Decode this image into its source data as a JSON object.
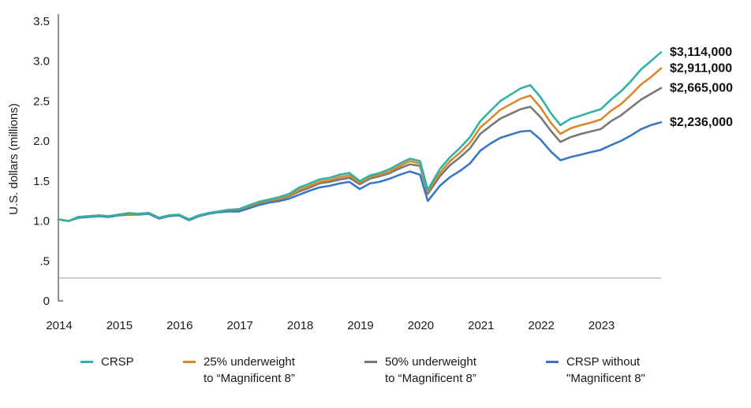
{
  "chart_data": {
    "type": "line",
    "ylabel": "U.S. dollars (millions)",
    "xlabel": "",
    "ylim": [
      0,
      3.5
    ],
    "xlim": [
      2014.0,
      2024.0
    ],
    "yticks": [
      {
        "value": 0,
        "label": "0"
      },
      {
        "value": 0.5,
        "label": ".5"
      },
      {
        "value": 1.0,
        "label": "1.0"
      },
      {
        "value": 1.5,
        "label": "1.5"
      },
      {
        "value": 2.0,
        "label": "2.0"
      },
      {
        "value": 2.5,
        "label": "2.5"
      },
      {
        "value": 3.0,
        "label": "3.0"
      },
      {
        "value": 3.5,
        "label": "3.5"
      }
    ],
    "xticks": [
      "2014",
      "2015",
      "2016",
      "2017",
      "2018",
      "2019",
      "2020",
      "2021",
      "2022",
      "2023"
    ],
    "grid": false,
    "legend_position": "bottom",
    "series": [
      {
        "name": "CRSP",
        "color": "#2fb3a6",
        "end_label": "$3,114,000",
        "points": [
          [
            2014.0,
            1.02
          ],
          [
            2014.17,
            1.0
          ],
          [
            2014.33,
            1.05
          ],
          [
            2014.5,
            1.06
          ],
          [
            2014.67,
            1.07
          ],
          [
            2014.83,
            1.06
          ],
          [
            2015.0,
            1.08
          ],
          [
            2015.17,
            1.1
          ],
          [
            2015.33,
            1.09
          ],
          [
            2015.5,
            1.1
          ],
          [
            2015.67,
            1.04
          ],
          [
            2015.83,
            1.07
          ],
          [
            2016.0,
            1.08
          ],
          [
            2016.17,
            1.02
          ],
          [
            2016.33,
            1.07
          ],
          [
            2016.5,
            1.1
          ],
          [
            2016.67,
            1.12
          ],
          [
            2016.83,
            1.14
          ],
          [
            2017.0,
            1.15
          ],
          [
            2017.17,
            1.2
          ],
          [
            2017.33,
            1.24
          ],
          [
            2017.5,
            1.27
          ],
          [
            2017.67,
            1.3
          ],
          [
            2017.83,
            1.34
          ],
          [
            2018.0,
            1.42
          ],
          [
            2018.17,
            1.47
          ],
          [
            2018.33,
            1.52
          ],
          [
            2018.5,
            1.54
          ],
          [
            2018.67,
            1.58
          ],
          [
            2018.83,
            1.6
          ],
          [
            2019.0,
            1.5
          ],
          [
            2019.17,
            1.57
          ],
          [
            2019.33,
            1.6
          ],
          [
            2019.5,
            1.65
          ],
          [
            2019.67,
            1.72
          ],
          [
            2019.83,
            1.78
          ],
          [
            2020.0,
            1.75
          ],
          [
            2020.13,
            1.39
          ],
          [
            2020.33,
            1.65
          ],
          [
            2020.5,
            1.8
          ],
          [
            2020.67,
            1.92
          ],
          [
            2020.83,
            2.05
          ],
          [
            2021.0,
            2.25
          ],
          [
            2021.17,
            2.38
          ],
          [
            2021.33,
            2.5
          ],
          [
            2021.5,
            2.58
          ],
          [
            2021.67,
            2.66
          ],
          [
            2021.83,
            2.7
          ],
          [
            2022.0,
            2.55
          ],
          [
            2022.17,
            2.35
          ],
          [
            2022.33,
            2.2
          ],
          [
            2022.5,
            2.28
          ],
          [
            2022.67,
            2.32
          ],
          [
            2022.83,
            2.36
          ],
          [
            2023.0,
            2.4
          ],
          [
            2023.17,
            2.52
          ],
          [
            2023.33,
            2.62
          ],
          [
            2023.5,
            2.75
          ],
          [
            2023.67,
            2.9
          ],
          [
            2023.83,
            3.0
          ],
          [
            2024.0,
            3.114
          ]
        ]
      },
      {
        "name": "25% underweight\nto “Magnificent  8”",
        "color": "#d9892c",
        "end_label": "$2,911,000",
        "points": [
          [
            2014.0,
            1.02
          ],
          [
            2014.17,
            1.0
          ],
          [
            2014.33,
            1.05
          ],
          [
            2014.5,
            1.06
          ],
          [
            2014.67,
            1.07
          ],
          [
            2014.83,
            1.06
          ],
          [
            2015.0,
            1.08
          ],
          [
            2015.17,
            1.09
          ],
          [
            2015.33,
            1.09
          ],
          [
            2015.5,
            1.1
          ],
          [
            2015.67,
            1.04
          ],
          [
            2015.83,
            1.07
          ],
          [
            2016.0,
            1.08
          ],
          [
            2016.17,
            1.02
          ],
          [
            2016.33,
            1.07
          ],
          [
            2016.5,
            1.1
          ],
          [
            2016.67,
            1.12
          ],
          [
            2016.83,
            1.14
          ],
          [
            2017.0,
            1.15
          ],
          [
            2017.17,
            1.19
          ],
          [
            2017.33,
            1.23
          ],
          [
            2017.5,
            1.26
          ],
          [
            2017.67,
            1.28
          ],
          [
            2017.83,
            1.32
          ],
          [
            2018.0,
            1.39
          ],
          [
            2018.17,
            1.44
          ],
          [
            2018.33,
            1.49
          ],
          [
            2018.5,
            1.51
          ],
          [
            2018.67,
            1.55
          ],
          [
            2018.83,
            1.57
          ],
          [
            2019.0,
            1.48
          ],
          [
            2019.17,
            1.55
          ],
          [
            2019.33,
            1.58
          ],
          [
            2019.5,
            1.62
          ],
          [
            2019.67,
            1.69
          ],
          [
            2019.83,
            1.75
          ],
          [
            2020.0,
            1.72
          ],
          [
            2020.13,
            1.37
          ],
          [
            2020.33,
            1.6
          ],
          [
            2020.5,
            1.75
          ],
          [
            2020.67,
            1.86
          ],
          [
            2020.83,
            1.98
          ],
          [
            2021.0,
            2.17
          ],
          [
            2021.17,
            2.28
          ],
          [
            2021.33,
            2.39
          ],
          [
            2021.5,
            2.46
          ],
          [
            2021.67,
            2.53
          ],
          [
            2021.83,
            2.57
          ],
          [
            2022.0,
            2.42
          ],
          [
            2022.17,
            2.23
          ],
          [
            2022.33,
            2.09
          ],
          [
            2022.5,
            2.16
          ],
          [
            2022.67,
            2.2
          ],
          [
            2022.83,
            2.23
          ],
          [
            2023.0,
            2.27
          ],
          [
            2023.17,
            2.38
          ],
          [
            2023.33,
            2.46
          ],
          [
            2023.5,
            2.58
          ],
          [
            2023.67,
            2.71
          ],
          [
            2023.83,
            2.8
          ],
          [
            2024.0,
            2.911
          ]
        ]
      },
      {
        "name": "50% underweight\nto “Magnificent  8”",
        "color": "#777777",
        "end_label": "$2,665,000",
        "points": [
          [
            2014.0,
            1.02
          ],
          [
            2014.17,
            1.0
          ],
          [
            2014.33,
            1.05
          ],
          [
            2014.5,
            1.06
          ],
          [
            2014.67,
            1.07
          ],
          [
            2014.83,
            1.06
          ],
          [
            2015.0,
            1.08
          ],
          [
            2015.17,
            1.09
          ],
          [
            2015.33,
            1.09
          ],
          [
            2015.5,
            1.1
          ],
          [
            2015.67,
            1.04
          ],
          [
            2015.83,
            1.07
          ],
          [
            2016.0,
            1.08
          ],
          [
            2016.17,
            1.02
          ],
          [
            2016.33,
            1.07
          ],
          [
            2016.5,
            1.1
          ],
          [
            2016.67,
            1.12
          ],
          [
            2016.83,
            1.14
          ],
          [
            2017.0,
            1.14
          ],
          [
            2017.17,
            1.18
          ],
          [
            2017.33,
            1.22
          ],
          [
            2017.5,
            1.25
          ],
          [
            2017.67,
            1.27
          ],
          [
            2017.83,
            1.31
          ],
          [
            2018.0,
            1.37
          ],
          [
            2018.17,
            1.42
          ],
          [
            2018.33,
            1.47
          ],
          [
            2018.5,
            1.49
          ],
          [
            2018.67,
            1.52
          ],
          [
            2018.83,
            1.54
          ],
          [
            2019.0,
            1.46
          ],
          [
            2019.17,
            1.53
          ],
          [
            2019.33,
            1.56
          ],
          [
            2019.5,
            1.6
          ],
          [
            2019.67,
            1.66
          ],
          [
            2019.83,
            1.71
          ],
          [
            2020.0,
            1.69
          ],
          [
            2020.13,
            1.34
          ],
          [
            2020.33,
            1.56
          ],
          [
            2020.5,
            1.7
          ],
          [
            2020.67,
            1.8
          ],
          [
            2020.83,
            1.91
          ],
          [
            2021.0,
            2.09
          ],
          [
            2021.17,
            2.19
          ],
          [
            2021.33,
            2.28
          ],
          [
            2021.5,
            2.34
          ],
          [
            2021.67,
            2.4
          ],
          [
            2021.83,
            2.43
          ],
          [
            2022.0,
            2.3
          ],
          [
            2022.17,
            2.13
          ],
          [
            2022.33,
            1.99
          ],
          [
            2022.5,
            2.05
          ],
          [
            2022.67,
            2.09
          ],
          [
            2022.83,
            2.12
          ],
          [
            2023.0,
            2.15
          ],
          [
            2023.17,
            2.25
          ],
          [
            2023.33,
            2.32
          ],
          [
            2023.5,
            2.42
          ],
          [
            2023.67,
            2.52
          ],
          [
            2023.83,
            2.59
          ],
          [
            2024.0,
            2.665
          ]
        ]
      },
      {
        "name": "CRSP without\n\"Magnificent 8\"",
        "color": "#3a78c4",
        "end_label": "$2,236,000",
        "points": [
          [
            2014.0,
            1.02
          ],
          [
            2014.17,
            1.0
          ],
          [
            2014.33,
            1.04
          ],
          [
            2014.5,
            1.05
          ],
          [
            2014.67,
            1.06
          ],
          [
            2014.83,
            1.05
          ],
          [
            2015.0,
            1.07
          ],
          [
            2015.17,
            1.08
          ],
          [
            2015.33,
            1.08
          ],
          [
            2015.5,
            1.09
          ],
          [
            2015.67,
            1.03
          ],
          [
            2015.83,
            1.06
          ],
          [
            2016.0,
            1.07
          ],
          [
            2016.17,
            1.01
          ],
          [
            2016.33,
            1.06
          ],
          [
            2016.5,
            1.09
          ],
          [
            2016.67,
            1.11
          ],
          [
            2016.83,
            1.12
          ],
          [
            2017.0,
            1.12
          ],
          [
            2017.17,
            1.16
          ],
          [
            2017.33,
            1.2
          ],
          [
            2017.5,
            1.23
          ],
          [
            2017.67,
            1.25
          ],
          [
            2017.83,
            1.28
          ],
          [
            2018.0,
            1.33
          ],
          [
            2018.17,
            1.38
          ],
          [
            2018.33,
            1.42
          ],
          [
            2018.5,
            1.44
          ],
          [
            2018.67,
            1.47
          ],
          [
            2018.83,
            1.49
          ],
          [
            2019.0,
            1.4
          ],
          [
            2019.17,
            1.47
          ],
          [
            2019.33,
            1.49
          ],
          [
            2019.5,
            1.53
          ],
          [
            2019.67,
            1.58
          ],
          [
            2019.83,
            1.62
          ],
          [
            2020.0,
            1.58
          ],
          [
            2020.13,
            1.25
          ],
          [
            2020.33,
            1.44
          ],
          [
            2020.5,
            1.55
          ],
          [
            2020.67,
            1.63
          ],
          [
            2020.83,
            1.72
          ],
          [
            2021.0,
            1.88
          ],
          [
            2021.17,
            1.97
          ],
          [
            2021.33,
            2.04
          ],
          [
            2021.5,
            2.08
          ],
          [
            2021.67,
            2.12
          ],
          [
            2021.83,
            2.13
          ],
          [
            2022.0,
            2.02
          ],
          [
            2022.17,
            1.87
          ],
          [
            2022.33,
            1.76
          ],
          [
            2022.5,
            1.8
          ],
          [
            2022.67,
            1.83
          ],
          [
            2022.83,
            1.86
          ],
          [
            2023.0,
            1.89
          ],
          [
            2023.17,
            1.95
          ],
          [
            2023.33,
            2.0
          ],
          [
            2023.5,
            2.07
          ],
          [
            2023.67,
            2.15
          ],
          [
            2023.83,
            2.2
          ],
          [
            2024.0,
            2.236
          ]
        ]
      }
    ]
  }
}
